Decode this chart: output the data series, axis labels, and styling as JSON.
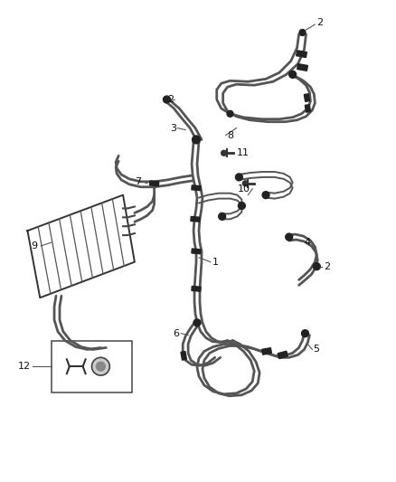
{
  "background_color": "#ffffff",
  "line_color": "#555555",
  "fig_width": 4.38,
  "fig_height": 5.33,
  "dpi": 100,
  "lw_hose": 2.0,
  "lw_hose_thin": 1.4,
  "lw_cooler": 1.3
}
